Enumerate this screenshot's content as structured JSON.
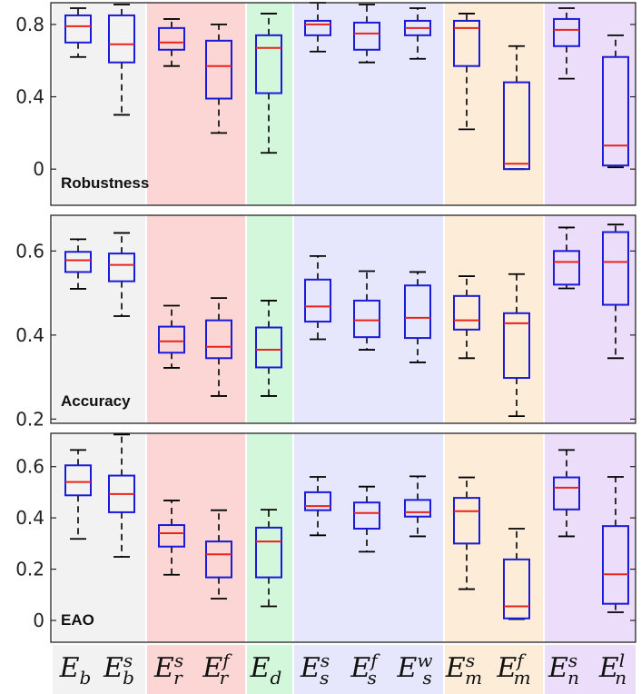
{
  "chart_data": {
    "type": "boxplot",
    "categories": [
      {
        "base": "E",
        "sub": "b",
        "sup": ""
      },
      {
        "base": "E",
        "sub": "b",
        "sup": "s"
      },
      {
        "base": "E",
        "sub": "r",
        "sup": "s"
      },
      {
        "base": "E",
        "sub": "r",
        "sup": "f"
      },
      {
        "base": "E",
        "sub": "d",
        "sup": ""
      },
      {
        "base": "E",
        "sub": "s",
        "sup": "s"
      },
      {
        "base": "E",
        "sub": "s",
        "sup": "f"
      },
      {
        "base": "E",
        "sub": "s",
        "sup": "w"
      },
      {
        "base": "E",
        "sub": "m",
        "sup": "s"
      },
      {
        "base": "E",
        "sub": "m",
        "sup": "f"
      },
      {
        "base": "E",
        "sub": "n",
        "sup": "s"
      },
      {
        "base": "E",
        "sub": "n",
        "sup": "l"
      }
    ],
    "groups": [
      {
        "name": "base",
        "indices": [
          0,
          1
        ],
        "color": "#f2f2f2"
      },
      {
        "name": "r",
        "indices": [
          2,
          3
        ],
        "color": "#fcd5d5"
      },
      {
        "name": "d",
        "indices": [
          4
        ],
        "color": "#d3f7da"
      },
      {
        "name": "s",
        "indices": [
          5,
          6,
          7
        ],
        "color": "#e6e6fc"
      },
      {
        "name": "m",
        "indices": [
          8,
          9
        ],
        "color": "#fcecd8"
      },
      {
        "name": "n",
        "indices": [
          10,
          11
        ],
        "color": "#ecdefa"
      }
    ],
    "colors": {
      "box": "#1a1ad9",
      "median": "#e8231e",
      "whisker": "#000000"
    },
    "panels": [
      {
        "label": "Robustness",
        "ylim": [
          -0.2,
          0.92
        ],
        "yticks": [
          0,
          0.4,
          0.8
        ],
        "ytick_labels": [
          "0",
          "0.4",
          "0.8"
        ],
        "boxes": [
          {
            "wlo": 0.62,
            "q1": 0.7,
            "med": 0.79,
            "q3": 0.85,
            "whi": 0.89
          },
          {
            "wlo": 0.3,
            "q1": 0.59,
            "med": 0.69,
            "q3": 0.85,
            "whi": 0.91
          },
          {
            "wlo": 0.57,
            "q1": 0.66,
            "med": 0.7,
            "q3": 0.78,
            "whi": 0.83
          },
          {
            "wlo": 0.2,
            "q1": 0.39,
            "med": 0.57,
            "q3": 0.71,
            "whi": 0.8
          },
          {
            "wlo": 0.09,
            "q1": 0.42,
            "med": 0.67,
            "q3": 0.74,
            "whi": 0.86
          },
          {
            "wlo": 0.65,
            "q1": 0.74,
            "med": 0.8,
            "q3": 0.82,
            "whi": 0.92
          },
          {
            "wlo": 0.59,
            "q1": 0.66,
            "med": 0.75,
            "q3": 0.81,
            "whi": 0.91
          },
          {
            "wlo": 0.61,
            "q1": 0.74,
            "med": 0.78,
            "q3": 0.82,
            "whi": 0.89
          },
          {
            "wlo": 0.22,
            "q1": 0.57,
            "med": 0.78,
            "q3": 0.82,
            "whi": 0.86
          },
          {
            "wlo": 0.0,
            "q1": 0.0,
            "med": 0.03,
            "q3": 0.48,
            "whi": 0.68
          },
          {
            "wlo": 0.5,
            "q1": 0.68,
            "med": 0.77,
            "q3": 0.83,
            "whi": 0.89
          },
          {
            "wlo": 0.01,
            "q1": 0.02,
            "med": 0.13,
            "q3": 0.62,
            "whi": 0.74
          }
        ]
      },
      {
        "label": "Accuracy",
        "ylim": [
          0.19,
          0.685
        ],
        "yticks": [
          0.2,
          0.4,
          0.6
        ],
        "ytick_labels": [
          "0.2",
          "0.4",
          "0.6"
        ],
        "boxes": [
          {
            "wlo": 0.51,
            "q1": 0.55,
            "med": 0.578,
            "q3": 0.598,
            "whi": 0.628
          },
          {
            "wlo": 0.445,
            "q1": 0.528,
            "med": 0.567,
            "q3": 0.594,
            "whi": 0.643
          },
          {
            "wlo": 0.322,
            "q1": 0.358,
            "med": 0.385,
            "q3": 0.42,
            "whi": 0.47
          },
          {
            "wlo": 0.255,
            "q1": 0.345,
            "med": 0.372,
            "q3": 0.435,
            "whi": 0.488
          },
          {
            "wlo": 0.255,
            "q1": 0.323,
            "med": 0.365,
            "q3": 0.418,
            "whi": 0.482
          },
          {
            "wlo": 0.39,
            "q1": 0.432,
            "med": 0.468,
            "q3": 0.532,
            "whi": 0.588
          },
          {
            "wlo": 0.365,
            "q1": 0.395,
            "med": 0.435,
            "q3": 0.482,
            "whi": 0.552
          },
          {
            "wlo": 0.335,
            "q1": 0.393,
            "med": 0.441,
            "q3": 0.518,
            "whi": 0.55
          },
          {
            "wlo": 0.345,
            "q1": 0.413,
            "med": 0.435,
            "q3": 0.493,
            "whi": 0.54
          },
          {
            "wlo": 0.207,
            "q1": 0.298,
            "med": 0.428,
            "q3": 0.452,
            "whi": 0.545
          },
          {
            "wlo": 0.511,
            "q1": 0.52,
            "med": 0.574,
            "q3": 0.6,
            "whi": 0.656
          },
          {
            "wlo": 0.345,
            "q1": 0.472,
            "med": 0.574,
            "q3": 0.645,
            "whi": 0.663
          }
        ]
      },
      {
        "label": "EAO",
        "ylim": [
          -0.085,
          0.73
        ],
        "yticks": [
          0,
          0.2,
          0.4,
          0.6
        ],
        "ytick_labels": [
          "0",
          "0.2",
          "0.4",
          "0.6"
        ],
        "boxes": [
          {
            "wlo": 0.318,
            "q1": 0.488,
            "med": 0.54,
            "q3": 0.605,
            "whi": 0.665
          },
          {
            "wlo": 0.248,
            "q1": 0.422,
            "med": 0.493,
            "q3": 0.565,
            "whi": 0.725
          },
          {
            "wlo": 0.178,
            "q1": 0.288,
            "med": 0.34,
            "q3": 0.372,
            "whi": 0.468
          },
          {
            "wlo": 0.085,
            "q1": 0.168,
            "med": 0.258,
            "q3": 0.308,
            "whi": 0.43
          },
          {
            "wlo": 0.055,
            "q1": 0.168,
            "med": 0.308,
            "q3": 0.362,
            "whi": 0.432
          },
          {
            "wlo": 0.332,
            "q1": 0.43,
            "med": 0.446,
            "q3": 0.5,
            "whi": 0.56
          },
          {
            "wlo": 0.268,
            "q1": 0.358,
            "med": 0.419,
            "q3": 0.46,
            "whi": 0.522
          },
          {
            "wlo": 0.328,
            "q1": 0.405,
            "med": 0.422,
            "q3": 0.47,
            "whi": 0.562
          },
          {
            "wlo": 0.122,
            "q1": 0.3,
            "med": 0.426,
            "q3": 0.478,
            "whi": 0.558
          },
          {
            "wlo": 0.005,
            "q1": 0.008,
            "med": 0.055,
            "q3": 0.238,
            "whi": 0.358
          },
          {
            "wlo": 0.328,
            "q1": 0.433,
            "med": 0.518,
            "q3": 0.558,
            "whi": 0.665
          },
          {
            "wlo": 0.032,
            "q1": 0.065,
            "med": 0.18,
            "q3": 0.368,
            "whi": 0.56
          }
        ]
      }
    ]
  }
}
